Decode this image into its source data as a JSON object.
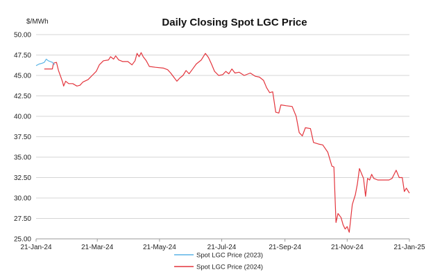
{
  "chart_data": {
    "type": "line",
    "title": "Daily Closing Spot LGC Price",
    "ylabel": "$/MWh",
    "xlabel": "",
    "ylim": [
      25.0,
      50.0
    ],
    "xlim": [
      "2024-01-21",
      "2025-01-21"
    ],
    "y_ticks": [
      "25.00",
      "27.50",
      "30.00",
      "32.50",
      "35.00",
      "37.50",
      "40.00",
      "42.50",
      "45.00",
      "47.50",
      "50.00"
    ],
    "x_ticks": [
      {
        "date": "2024-01-21",
        "label": "21-Jan-24"
      },
      {
        "date": "2024-03-21",
        "label": "21-Mar-24"
      },
      {
        "date": "2024-05-21",
        "label": "21-May-24"
      },
      {
        "date": "2024-07-21",
        "label": "21-Jul-24"
      },
      {
        "date": "2024-09-21",
        "label": "21-Sep-24"
      },
      {
        "date": "2024-11-21",
        "label": "21-Nov-24"
      },
      {
        "date": "2025-01-21",
        "label": "21-Jan-25"
      }
    ],
    "grid": true,
    "legend_position": "bottom",
    "series": [
      {
        "name": "Spot LGC Price (2023)",
        "color": "#5ab4e6",
        "points": [
          [
            "2024-01-21",
            46.2
          ],
          [
            "2024-01-24",
            46.4
          ],
          [
            "2024-01-27",
            46.5
          ],
          [
            "2024-01-29",
            46.6
          ],
          [
            "2024-01-31",
            47.0
          ],
          [
            "2024-02-02",
            46.8
          ],
          [
            "2024-02-04",
            46.7
          ],
          [
            "2024-02-06",
            46.6
          ],
          [
            "2024-02-08",
            46.3
          ]
        ]
      },
      {
        "name": "Spot LGC Price (2024)",
        "color": "#e3343c",
        "points": [
          [
            "2024-01-29",
            45.8
          ],
          [
            "2024-02-06",
            45.8
          ],
          [
            "2024-02-07",
            46.5
          ],
          [
            "2024-02-10",
            46.6
          ],
          [
            "2024-02-12",
            45.6
          ],
          [
            "2024-02-14",
            44.9
          ],
          [
            "2024-02-16",
            44.2
          ],
          [
            "2024-02-17",
            43.7
          ],
          [
            "2024-02-19",
            44.3
          ],
          [
            "2024-02-22",
            44.0
          ],
          [
            "2024-02-26",
            44.0
          ],
          [
            "2024-03-01",
            43.7
          ],
          [
            "2024-03-04",
            43.8
          ],
          [
            "2024-03-07",
            44.2
          ],
          [
            "2024-03-12",
            44.5
          ],
          [
            "2024-03-16",
            45.0
          ],
          [
            "2024-03-20",
            45.5
          ],
          [
            "2024-03-23",
            46.3
          ],
          [
            "2024-03-27",
            46.8
          ],
          [
            "2024-04-01",
            46.9
          ],
          [
            "2024-04-03",
            47.3
          ],
          [
            "2024-04-06",
            47.0
          ],
          [
            "2024-04-08",
            47.4
          ],
          [
            "2024-04-11",
            46.9
          ],
          [
            "2024-04-15",
            46.7
          ],
          [
            "2024-04-20",
            46.7
          ],
          [
            "2024-04-24",
            46.3
          ],
          [
            "2024-04-27",
            46.8
          ],
          [
            "2024-04-29",
            47.7
          ],
          [
            "2024-05-01",
            47.3
          ],
          [
            "2024-05-03",
            47.8
          ],
          [
            "2024-05-05",
            47.3
          ],
          [
            "2024-05-08",
            46.8
          ],
          [
            "2024-05-11",
            46.1
          ],
          [
            "2024-05-17",
            46.0
          ],
          [
            "2024-05-25",
            45.9
          ],
          [
            "2024-05-29",
            45.7
          ],
          [
            "2024-06-01",
            45.3
          ],
          [
            "2024-06-04",
            44.8
          ],
          [
            "2024-06-07",
            44.3
          ],
          [
            "2024-06-10",
            44.7
          ],
          [
            "2024-06-13",
            45.0
          ],
          [
            "2024-06-16",
            45.6
          ],
          [
            "2024-06-19",
            45.2
          ],
          [
            "2024-06-22",
            45.7
          ],
          [
            "2024-06-26",
            46.4
          ],
          [
            "2024-07-01",
            46.9
          ],
          [
            "2024-07-05",
            47.7
          ],
          [
            "2024-07-08",
            47.2
          ],
          [
            "2024-07-11",
            46.4
          ],
          [
            "2024-07-14",
            45.5
          ],
          [
            "2024-07-18",
            45.0
          ],
          [
            "2024-07-22",
            45.1
          ],
          [
            "2024-07-25",
            45.5
          ],
          [
            "2024-07-28",
            45.2
          ],
          [
            "2024-07-31",
            45.8
          ],
          [
            "2024-08-03",
            45.3
          ],
          [
            "2024-08-07",
            45.4
          ],
          [
            "2024-08-12",
            45.0
          ],
          [
            "2024-08-18",
            45.3
          ],
          [
            "2024-08-23",
            44.9
          ],
          [
            "2024-08-27",
            44.8
          ],
          [
            "2024-08-31",
            44.4
          ],
          [
            "2024-09-03",
            43.5
          ],
          [
            "2024-09-06",
            42.9
          ],
          [
            "2024-09-09",
            43.0
          ],
          [
            "2024-09-12",
            40.5
          ],
          [
            "2024-09-15",
            40.4
          ],
          [
            "2024-09-17",
            41.4
          ],
          [
            "2024-09-22",
            41.3
          ],
          [
            "2024-09-28",
            41.2
          ],
          [
            "2024-10-02",
            40.0
          ],
          [
            "2024-10-05",
            38.0
          ],
          [
            "2024-10-08",
            37.6
          ],
          [
            "2024-10-11",
            38.6
          ],
          [
            "2024-10-16",
            38.5
          ],
          [
            "2024-10-19",
            36.8
          ],
          [
            "2024-10-24",
            36.6
          ],
          [
            "2024-10-28",
            36.5
          ],
          [
            "2024-11-02",
            35.6
          ],
          [
            "2024-11-06",
            33.9
          ],
          [
            "2024-11-08",
            33.8
          ],
          [
            "2024-11-10",
            27.0
          ],
          [
            "2024-11-12",
            28.1
          ],
          [
            "2024-11-15",
            27.6
          ],
          [
            "2024-11-17",
            26.7
          ],
          [
            "2024-11-19",
            26.2
          ],
          [
            "2024-11-21",
            26.5
          ],
          [
            "2024-11-23",
            25.8
          ],
          [
            "2024-11-26",
            29.2
          ],
          [
            "2024-11-29",
            30.4
          ],
          [
            "2024-12-01",
            31.7
          ],
          [
            "2024-12-03",
            33.6
          ],
          [
            "2024-12-07",
            32.4
          ],
          [
            "2024-12-09",
            30.2
          ],
          [
            "2024-12-11",
            32.4
          ],
          [
            "2024-12-13",
            32.2
          ],
          [
            "2024-12-15",
            32.9
          ],
          [
            "2024-12-17",
            32.4
          ],
          [
            "2024-12-21",
            32.2
          ],
          [
            "2024-12-26",
            32.2
          ],
          [
            "2025-01-01",
            32.2
          ],
          [
            "2025-01-04",
            32.4
          ],
          [
            "2025-01-08",
            33.4
          ],
          [
            "2025-01-11",
            32.5
          ],
          [
            "2025-01-14",
            32.5
          ],
          [
            "2025-01-16",
            30.8
          ],
          [
            "2025-01-18",
            31.2
          ],
          [
            "2025-01-21",
            30.6
          ]
        ]
      }
    ]
  }
}
